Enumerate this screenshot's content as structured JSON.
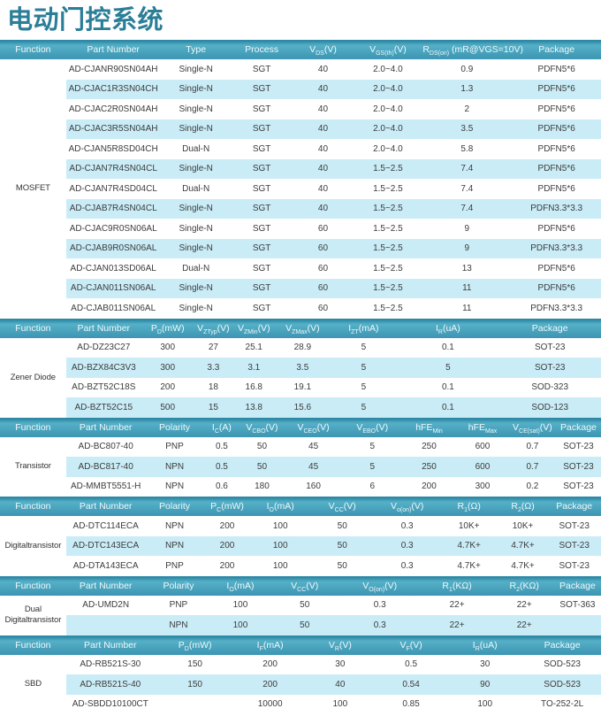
{
  "page_title": "电动门控系统",
  "colors": {
    "title_text": "#2b7e97",
    "header_top_edge": "#2e89a6",
    "header_light": "#55b0c7",
    "header_base": "#3d95b2",
    "header_text": "#eef8fb",
    "row_alt": "#c9ecf6",
    "cell_text": "#3c3c3c"
  },
  "tables": [
    {
      "id": "mosfet",
      "function": "MOSFET",
      "headers": [
        "Function",
        "Part Number",
        "Type",
        "Process",
        "V_{DS}(V)",
        "V_{GS(th)}(V)",
        "R_{DS(on)} (mR@VGS=10V)",
        "Package"
      ],
      "col_pct": [
        11,
        15.7,
        11.8,
        10.1,
        10.3,
        11.3,
        15,
        14.8
      ],
      "rows": [
        [
          "AD-CJANR90SN04AH",
          "Single-N",
          "SGT",
          "40",
          "2.0~4.0",
          "0.9",
          "PDFN5*6"
        ],
        [
          "AD-CJAC1R3SN04CH",
          "Single-N",
          "SGT",
          "40",
          "2.0~4.0",
          "1.3",
          "PDFN5*6"
        ],
        [
          "AD-CJAC2R0SN04AH",
          "Single-N",
          "SGT",
          "40",
          "2.0~4.0",
          "2",
          "PDFN5*6"
        ],
        [
          "AD-CJAC3R5SN04AH",
          "Single-N",
          "SGT",
          "40",
          "2.0~4.0",
          "3.5",
          "PDFN5*6"
        ],
        [
          "AD-CJAN5R8SD04CH",
          "Dual-N",
          "SGT",
          "40",
          "2.0~4.0",
          "5.8",
          "PDFN5*6"
        ],
        [
          "AD-CJAN7R4SN04CL",
          "Single-N",
          "SGT",
          "40",
          "1.5~2.5",
          "7.4",
          "PDFN5*6"
        ],
        [
          "AD-CJAN7R4SD04CL",
          "Dual-N",
          "SGT",
          "40",
          "1.5~2.5",
          "7.4",
          "PDFN5*6"
        ],
        [
          "AD-CJAB7R4SN04CL",
          "Single-N",
          "SGT",
          "40",
          "1.5~2.5",
          "7.4",
          "PDFN3.3*3.3"
        ],
        [
          "AD-CJAC9R0SN06AL",
          "Single-N",
          "SGT",
          "60",
          "1.5~2.5",
          "9",
          "PDFN5*6"
        ],
        [
          "AD-CJAB9R0SN06AL",
          "Single-N",
          "SGT",
          "60",
          "1.5~2.5",
          "9",
          "PDFN3.3*3.3"
        ],
        [
          "AD-CJAN013SD06AL",
          "Dual-N",
          "SGT",
          "60",
          "1.5~2.5",
          "13",
          "PDFN5*6"
        ],
        [
          "AD-CJAN011SN06AL",
          "Single-N",
          "SGT",
          "60",
          "1.5~2.5",
          "11",
          "PDFN5*6"
        ],
        [
          "AD-CJAB011SN06AL",
          "Single-N",
          "SGT",
          "60",
          "1.5~2.5",
          "11",
          "PDFN3.3*3.3"
        ]
      ]
    },
    {
      "id": "zener-diode",
      "function": "Zener Diode",
      "headers": [
        "Function",
        "Part Number",
        "P_{D}(mW)",
        "V_{ZTyp}(V)",
        "V_{ZMin}(V)",
        "V_{ZMax}(V)",
        "I_{ZT}(mA)",
        "I_{R}(uA)",
        "Package"
      ],
      "col_pct": [
        11,
        12.5,
        8.8,
        6.4,
        7.1,
        9.1,
        11.2,
        16.9,
        17
      ],
      "rows": [
        [
          "AD-DZ23C27",
          "300",
          "27",
          "25.1",
          "28.9",
          "5",
          "0.1",
          "SOT-23"
        ],
        [
          "AD-BZX84C3V3",
          "300",
          "3.3",
          "3.1",
          "3.5",
          "5",
          "5",
          "SOT-23"
        ],
        [
          "AD-BZT52C18S",
          "200",
          "18",
          "16.8",
          "19.1",
          "5",
          "0.1",
          "SOD-323"
        ],
        [
          "AD-BZT52C15",
          "500",
          "15",
          "13.8",
          "15.6",
          "5",
          "0.1",
          "SOD-123"
        ]
      ]
    },
    {
      "id": "transistor",
      "function": "Transistor",
      "headers": [
        "Function",
        "Part Number",
        "Polarity",
        "I_{C}(A)",
        "V_{CBO}(V)",
        "V_{CEO}(V)",
        "V_{EBO}(V)",
        "hFE_{Min}",
        "hFE_{Max}",
        "V_{CE(sat)}(V)",
        "Package"
      ],
      "col_pct": [
        11,
        13.2,
        9.7,
        6,
        7.4,
        9.7,
        9.9,
        9,
        8.8,
        7.8,
        7.5
      ],
      "rows": [
        [
          "AD-BC807-40",
          "PNP",
          "0.5",
          "50",
          "45",
          "5",
          "250",
          "600",
          "0.7",
          "SOT-23"
        ],
        [
          "AD-BC817-40",
          "NPN",
          "0.5",
          "50",
          "45",
          "5",
          "250",
          "600",
          "0.7",
          "SOT-23"
        ],
        [
          "AD-MMBT5551-H",
          "NPN",
          "0.6",
          "180",
          "160",
          "6",
          "200",
          "300",
          "0.2",
          "SOT-23"
        ]
      ]
    },
    {
      "id": "digitaltransistor",
      "function": "Digitaltransistor",
      "headers": [
        "Function",
        "Part Number",
        "Polarity",
        "P_{C}(mW)",
        "I_{O}(mA)",
        "V_{CC}(V)",
        "V_{o(on)}(V)",
        "R_{1}(Ω)",
        "R_{2}(Ω)",
        "Package"
      ],
      "col_pct": [
        11,
        13.2,
        9.7,
        7.8,
        9.9,
        10.7,
        10.9,
        9.7,
        8.2,
        8.9
      ],
      "rows": [
        [
          "AD-DTC114ECA",
          "NPN",
          "200",
          "100",
          "50",
          "0.3",
          "10K+",
          "10K+",
          "SOT-23"
        ],
        [
          "AD-DTC143ECA",
          "NPN",
          "200",
          "100",
          "50",
          "0.3",
          "4.7K+",
          "4.7K+",
          "SOT-23"
        ],
        [
          "AD-DTA143ECA",
          "PNP",
          "200",
          "100",
          "50",
          "0.3",
          "4.7K+",
          "4.7K+",
          "SOT-23"
        ]
      ]
    },
    {
      "id": "dual-digitaltransistor",
      "function": "Dual Digitaltransistor",
      "headers": [
        "Function",
        "Part Number",
        "Polarity",
        "I_{O}(mA)",
        "V_{CC}(V)",
        "V_{O(on)}(V)",
        "R_{1}(KΩ)",
        "R_{2}(KΩ)",
        "Package"
      ],
      "col_pct": [
        11,
        13.2,
        11,
        9.6,
        11.8,
        13.2,
        12.5,
        9.9,
        7.8
      ],
      "rows": [
        [
          "AD-UMD2N",
          "PNP",
          "100",
          "50",
          "0.3",
          "22+",
          "22+",
          "SOT-363"
        ],
        [
          "",
          "NPN",
          "100",
          "50",
          "0.3",
          "22+",
          "22+",
          ""
        ]
      ]
    },
    {
      "id": "sbd",
      "function": "SBD",
      "headers": [
        "Function",
        "Part Number",
        "P_{D}(mW)",
        "I_{F}(mA)",
        "V_{R}(V)",
        "V_{F}(V)",
        "I_{R}(uA)",
        "Package"
      ],
      "col_pct": [
        11,
        14.7,
        13.5,
        11.5,
        11.8,
        11.8,
        12.8,
        12.9
      ],
      "rows": [
        [
          "AD-RB521S-30",
          "150",
          "200",
          "30",
          "0.5",
          "30",
          "SOD-523"
        ],
        [
          "AD-RB521S-40",
          "150",
          "200",
          "40",
          "0.54",
          "90",
          "SOD-523"
        ],
        [
          "AD-SBDD10100CT",
          "",
          "10000",
          "100",
          "0.85",
          "100",
          "TO-252-2L"
        ]
      ]
    }
  ]
}
